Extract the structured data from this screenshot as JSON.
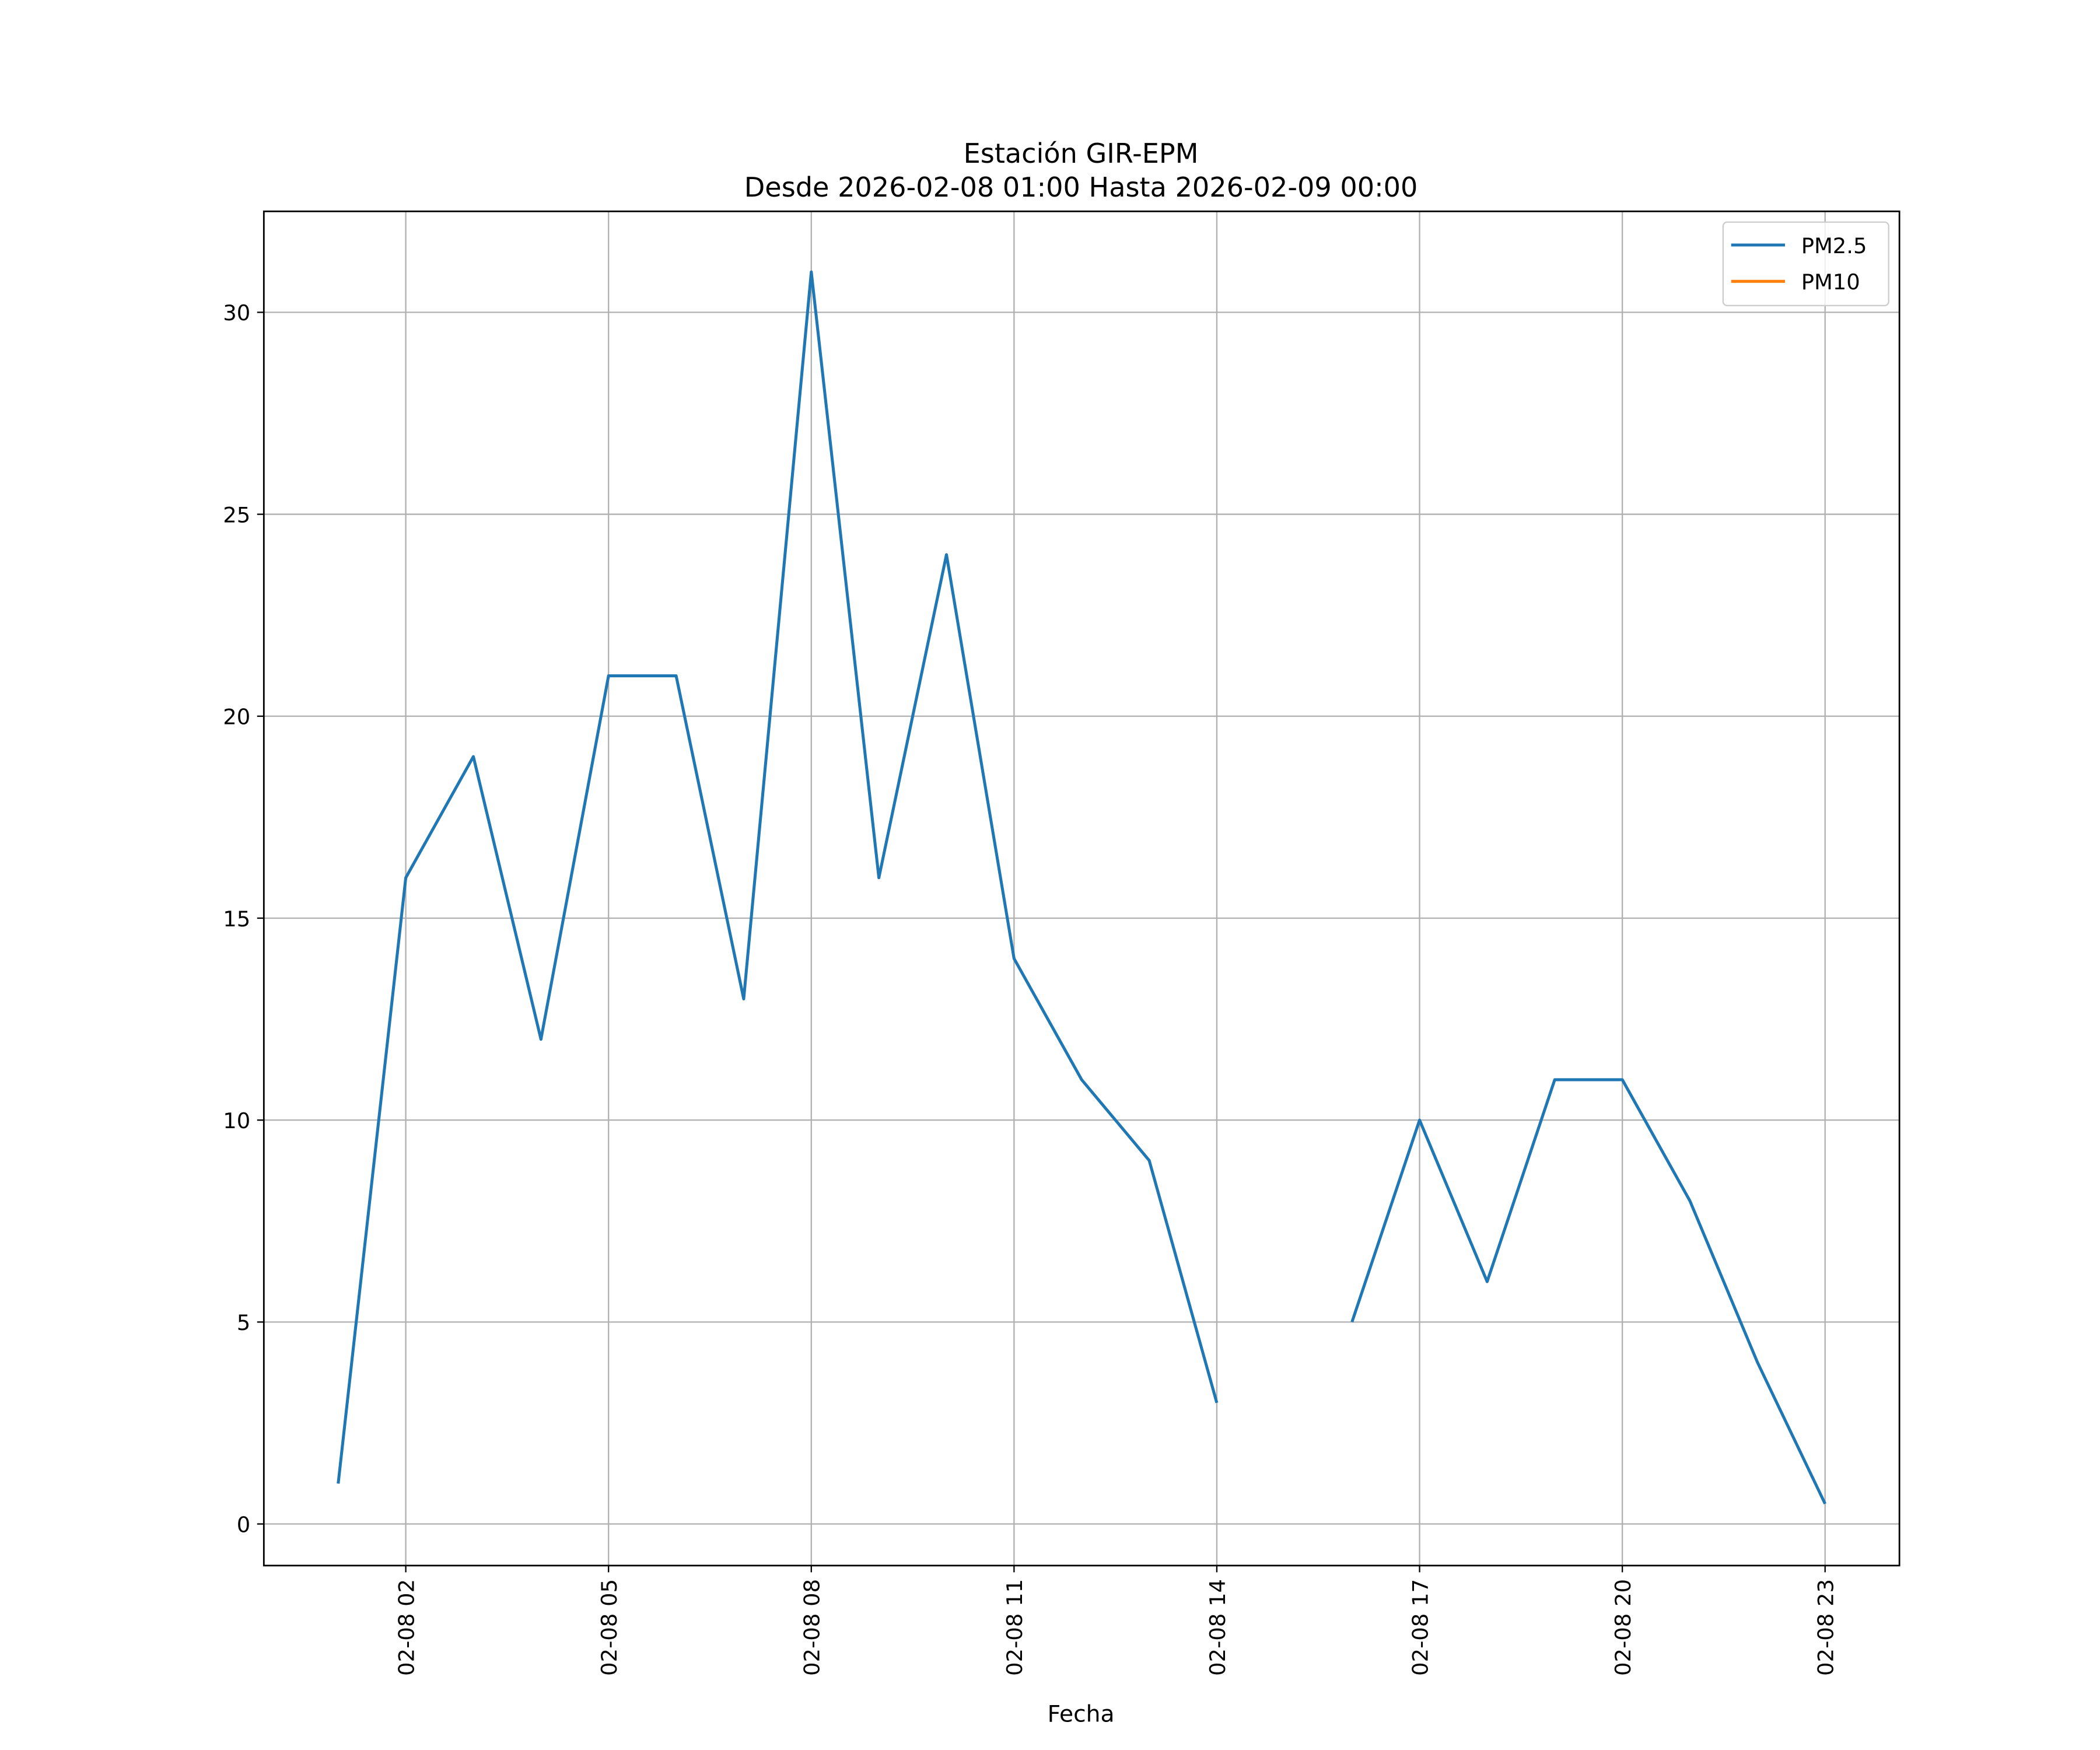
{
  "chart_data": {
    "type": "line",
    "title": "Estación GIR-EPM",
    "subtitle": "Desde 2026-02-08 01:00 Hasta 2026-02-09 00:00",
    "x_label": "Fecha",
    "x": [
      "02-08 01",
      "02-08 02",
      "02-08 03",
      "02-08 04",
      "02-08 05",
      "02-08 06",
      "02-08 07",
      "02-08 08",
      "02-08 09",
      "02-08 10",
      "02-08 11",
      "02-08 12",
      "02-08 13",
      "02-08 14",
      "02-08 15",
      "02-08 16",
      "02-08 17",
      "02-08 18",
      "02-08 19",
      "02-08 20",
      "02-08 21",
      "02-08 22",
      "02-08 23"
    ],
    "series": [
      {
        "name": "PM2.5",
        "color": "#1f77b4",
        "values": [
          1,
          16,
          19,
          12,
          21,
          21,
          13,
          31,
          16,
          24,
          14,
          11,
          9,
          3,
          null,
          5,
          10,
          6,
          11,
          11,
          8,
          4,
          0.5
        ]
      },
      {
        "name": "PM10",
        "color": "#ff7f0e",
        "values": [
          null,
          null,
          null,
          null,
          null,
          null,
          null,
          null,
          null,
          null,
          null,
          null,
          null,
          null,
          null,
          null,
          null,
          null,
          null,
          null,
          null,
          null,
          null
        ]
      }
    ],
    "xticks": [
      "02-08 02",
      "02-08 05",
      "02-08 08",
      "02-08 11",
      "02-08 14",
      "02-08 17",
      "02-08 20",
      "02-08 23"
    ],
    "ylim": [
      -1.03,
      32.5
    ],
    "yticks": [
      0,
      5,
      10,
      15,
      20,
      25,
      30
    ],
    "grid": true,
    "legend": "upper right"
  }
}
